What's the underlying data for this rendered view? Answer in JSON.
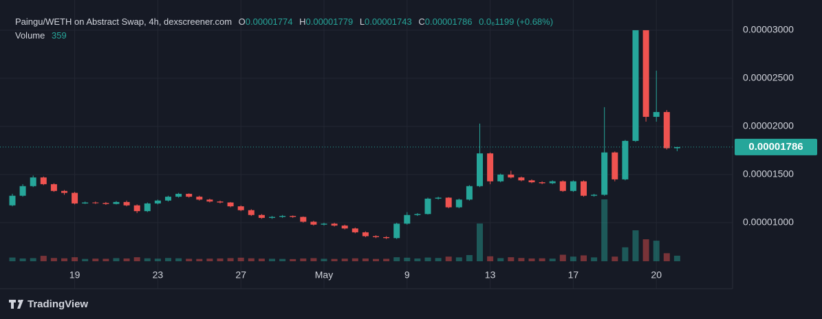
{
  "chart_data": {
    "type": "candlestick",
    "title": "Paingu/WETH on Abstract Swap, 4h, dexscreener.com",
    "ohlc_letters": [
      "O",
      "H",
      "L",
      "C"
    ],
    "change": "0.0₆1199 (+0.68%)",
    "volume_label": "Volume",
    "brand": "TradingView",
    "categories": [
      null,
      null,
      null,
      null,
      null,
      null,
      "19",
      null,
      null,
      null,
      null,
      null,
      null,
      null,
      "23",
      null,
      null,
      null,
      null,
      null,
      null,
      null,
      "27",
      null,
      null,
      null,
      null,
      null,
      null,
      null,
      "May",
      null,
      null,
      null,
      null,
      null,
      null,
      null,
      "9",
      null,
      null,
      null,
      null,
      null,
      null,
      null,
      "13",
      null,
      null,
      null,
      null,
      null,
      null,
      null,
      "17",
      null,
      null,
      null,
      null,
      null,
      null,
      null,
      "20",
      null,
      null
    ],
    "open": [
      1.18e-05,
      1.28e-05,
      1.38e-05,
      1.47e-05,
      1.4e-05,
      1.33e-05,
      1.31e-05,
      1.2e-05,
      1.21e-05,
      1.205e-05,
      1.195e-05,
      1.215e-05,
      1.18e-05,
      1.12e-05,
      1.2e-05,
      1.23e-05,
      1.27e-05,
      1.3e-05,
      1.27e-05,
      1.24e-05,
      1.22e-05,
      1.21e-05,
      1.17e-05,
      1.13e-05,
      1.08e-05,
      1.05e-05,
      1.06e-05,
      1.07e-05,
      1.06e-05,
      1.01e-05,
      9.8e-06,
      9.9e-06,
      9.7e-06,
      9.4e-06,
      9e-06,
      8.6e-06,
      8.5e-06,
      8.4e-06,
      9.9e-06,
      1.08e-05,
      1.09e-05,
      1.25e-05,
      1.26e-05,
      1.16e-05,
      1.24e-05,
      1.38e-05,
      1.72e-05,
      1.43e-05,
      1.5e-05,
      1.47e-05,
      1.44e-05,
      1.42e-05,
      1.41e-05,
      1.43e-05,
      1.33e-05,
      1.43e-05,
      1.28e-05,
      1.29e-05,
      1.73e-05,
      1.45e-05,
      1.85e-05,
      3e-05,
      2.1e-05,
      2.15e-05,
      1.774e-05
    ],
    "high": [
      1.3e-05,
      1.4e-05,
      1.49e-05,
      1.48e-05,
      1.41e-05,
      1.34e-05,
      1.32e-05,
      1.22e-05,
      1.22e-05,
      1.215e-05,
      1.225e-05,
      1.23e-05,
      1.19e-05,
      1.21e-05,
      1.24e-05,
      1.28e-05,
      1.31e-05,
      1.305e-05,
      1.28e-05,
      1.25e-05,
      1.23e-05,
      1.215e-05,
      1.18e-05,
      1.14e-05,
      1.09e-05,
      1.07e-05,
      1.08e-05,
      1.075e-05,
      1.065e-05,
      1.02e-05,
      1e-05,
      1e-05,
      9.8e-06,
      9.5e-06,
      9.1e-06,
      8.7e-06,
      8.6e-06,
      1e-05,
      1.11e-05,
      1.1e-05,
      1.26e-05,
      1.27e-05,
      1.265e-05,
      1.25e-05,
      1.39e-05,
      2.03e-05,
      1.73e-05,
      1.51e-05,
      1.54e-05,
      1.48e-05,
      1.45e-05,
      1.43e-05,
      1.44e-05,
      1.44e-05,
      1.44e-05,
      1.44e-05,
      1.3e-05,
      2.2e-05,
      1.74e-05,
      1.86e-05,
      3e-05,
      3e-05,
      2.58e-05,
      2.17e-05,
      1.779e-05
    ],
    "low": [
      1.17e-05,
      1.27e-05,
      1.37e-05,
      1.39e-05,
      1.32e-05,
      1.29e-05,
      1.19e-05,
      1.195e-05,
      1.195e-05,
      1.185e-05,
      1.19e-05,
      1.17e-05,
      1.1e-05,
      1.11e-05,
      1.19e-05,
      1.22e-05,
      1.26e-05,
      1.26e-05,
      1.23e-05,
      1.21e-05,
      1.2e-05,
      1.16e-05,
      1.12e-05,
      1.07e-05,
      1.04e-05,
      1.04e-05,
      1.05e-05,
      1.05e-05,
      1e-05,
      9.7e-06,
      9.7e-06,
      9.6e-06,
      9.3e-06,
      8.9e-06,
      8.5e-06,
      8.4e-06,
      8.3e-06,
      8.3e-06,
      9.8e-06,
      1.07e-05,
      1.085e-05,
      1.24e-05,
      1.15e-05,
      1.15e-05,
      1.23e-05,
      1.37e-05,
      1.4e-05,
      1.42e-05,
      1.46e-05,
      1.43e-05,
      1.41e-05,
      1.4e-05,
      1.4e-05,
      1.32e-05,
      1.32e-05,
      1.27e-05,
      1.27e-05,
      1.28e-05,
      1.43e-05,
      1.44e-05,
      1.84e-05,
      2.05e-05,
      2.05e-05,
      1.76e-05,
      1.743e-05
    ],
    "close": [
      1.28e-05,
      1.38e-05,
      1.47e-05,
      1.4e-05,
      1.33e-05,
      1.31e-05,
      1.2e-05,
      1.21e-05,
      1.205e-05,
      1.195e-05,
      1.215e-05,
      1.18e-05,
      1.12e-05,
      1.2e-05,
      1.23e-05,
      1.27e-05,
      1.3e-05,
      1.27e-05,
      1.24e-05,
      1.22e-05,
      1.21e-05,
      1.17e-05,
      1.13e-05,
      1.08e-05,
      1.05e-05,
      1.06e-05,
      1.07e-05,
      1.06e-05,
      1.01e-05,
      9.8e-06,
      9.9e-06,
      9.7e-06,
      9.4e-06,
      9e-06,
      8.6e-06,
      8.5e-06,
      8.4e-06,
      9.9e-06,
      1.08e-05,
      1.09e-05,
      1.25e-05,
      1.26e-05,
      1.16e-05,
      1.24e-05,
      1.38e-05,
      1.72e-05,
      1.43e-05,
      1.5e-05,
      1.47e-05,
      1.44e-05,
      1.42e-05,
      1.41e-05,
      1.43e-05,
      1.33e-05,
      1.43e-05,
      1.28e-05,
      1.29e-05,
      1.73e-05,
      1.45e-05,
      1.85e-05,
      3e-05,
      2.1e-05,
      2.15e-05,
      1.774e-05,
      1.786e-05
    ],
    "volume": [
      240,
      180,
      200,
      350,
      210,
      190,
      260,
      150,
      170,
      160,
      200,
      180,
      260,
      190,
      170,
      210,
      190,
      160,
      150,
      170,
      180,
      200,
      230,
      190,
      170,
      160,
      150,
      140,
      180,
      200,
      160,
      150,
      170,
      190,
      180,
      150,
      160,
      260,
      230,
      180,
      240,
      210,
      300,
      250,
      400,
      2440,
      320,
      200,
      260,
      210,
      180,
      190,
      170,
      420,
      300,
      380,
      250,
      4000,
      300,
      900,
      2000,
      1420,
      1330,
      520,
      359
    ],
    "ylim": [
      5.28e-06,
      3.171e-05
    ],
    "yticks": [
      {
        "value": 1e-05,
        "label": "0.00001000"
      },
      {
        "value": 1.5e-05,
        "label": "0.00001500"
      },
      {
        "value": 2e-05,
        "label": "0.00002000"
      },
      {
        "value": 2.5e-05,
        "label": "0.00002500"
      },
      {
        "value": 3e-05,
        "label": "0.00003000"
      }
    ],
    "y2lim": [
      0,
      16000
    ],
    "grid": true,
    "up_color": "#26a69a",
    "down_color": "#ef5350"
  }
}
